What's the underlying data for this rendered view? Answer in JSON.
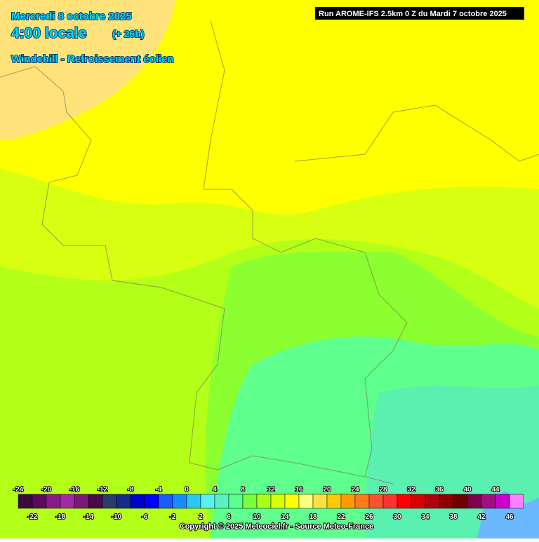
{
  "header": {
    "date": "Mercredi 8 octobre 2025",
    "time": "4:00 locale",
    "lead": "(+ 26h)",
    "parameter": "Windchill - Refroissement éolien",
    "run": "Run AROME-IFS 2.5km 0 Z du Mardi 7 octobre 2025"
  },
  "legend": {
    "top_labels": [
      -24,
      -20,
      -16,
      -12,
      -8,
      -4,
      0,
      4,
      8,
      12,
      16,
      20,
      24,
      28,
      32,
      36,
      40,
      44
    ],
    "bottom_labels": [
      -22,
      -18,
      -14,
      -10,
      -6,
      -2,
      2,
      6,
      10,
      14,
      18,
      22,
      26,
      30,
      34,
      38,
      42,
      46
    ],
    "colors": [
      "#3c0a3c",
      "#5c0a5c",
      "#8a1a8a",
      "#a02aa0",
      "#7a1a7a",
      "#4a0a4a",
      "#2a3a6a",
      "#1a2a8a",
      "#0000cc",
      "#0000ff",
      "#1a5aff",
      "#1a8aff",
      "#2ac8f0",
      "#5af0f0",
      "#5af0c0",
      "#5aff90",
      "#7aff3a",
      "#aaff1a",
      "#d8ff00",
      "#ffff00",
      "#ffff80",
      "#ffe040",
      "#ffc800",
      "#ff9a00",
      "#ff7a1a",
      "#ff5030",
      "#ff3030",
      "#ff0000",
      "#d80000",
      "#b00010",
      "#900000",
      "#700000",
      "#800050",
      "#a0107a",
      "#cc00cc",
      "#ff80ff"
    ]
  },
  "footer": {
    "copyright": "Copyright © 2025 Meteociel.fr - Source Meteo-France"
  }
}
